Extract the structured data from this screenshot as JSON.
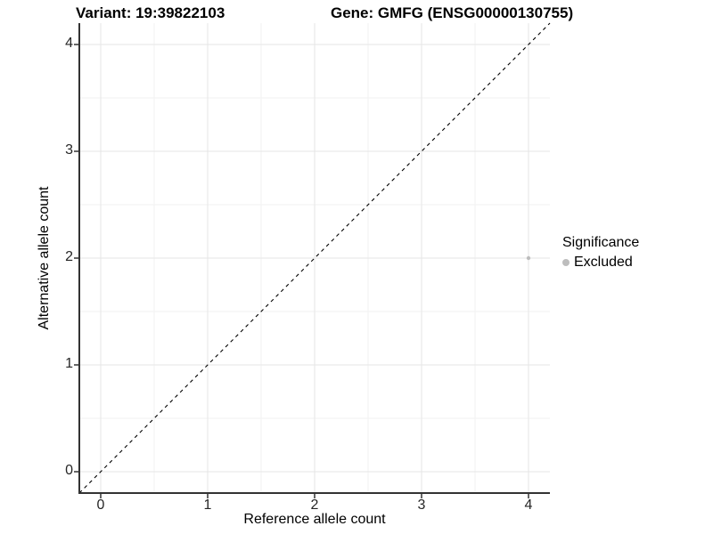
{
  "header": {
    "variant_label": "Variant: 19:39822103",
    "gene_label": "Gene: GMFG (ENSG00000130755)"
  },
  "chart_data": {
    "type": "scatter",
    "title": "Variant: 19:39822103    Gene: GMFG (ENSG00000130755)",
    "xlabel": "Reference allele count",
    "ylabel": "Alternative allele count",
    "xlim": [
      -0.2,
      4.2
    ],
    "ylim": [
      -0.2,
      4.2
    ],
    "x_ticks": [
      0,
      1,
      2,
      3,
      4
    ],
    "y_ticks": [
      0,
      1,
      2,
      3,
      4
    ],
    "minor_step": 0.5,
    "grid": true,
    "identity_line": {
      "style": "dashed",
      "color": "#000000",
      "from": [
        -0.2,
        -0.2
      ],
      "to": [
        4.2,
        4.2
      ]
    },
    "series": [
      {
        "name": "Excluded",
        "color": "#bdbdbd",
        "points": [
          {
            "x": 4,
            "y": 2
          }
        ]
      }
    ],
    "legend": {
      "title": "Significance",
      "entries": [
        "Excluded"
      ],
      "position": "right"
    }
  },
  "colors": {
    "axis_line": "#333333",
    "tick_mark": "#333333",
    "grid_major": "#e5e5e5",
    "grid_minor": "#f2f2f2",
    "background": "#ffffff",
    "point_excluded": "#bdbdbd"
  }
}
